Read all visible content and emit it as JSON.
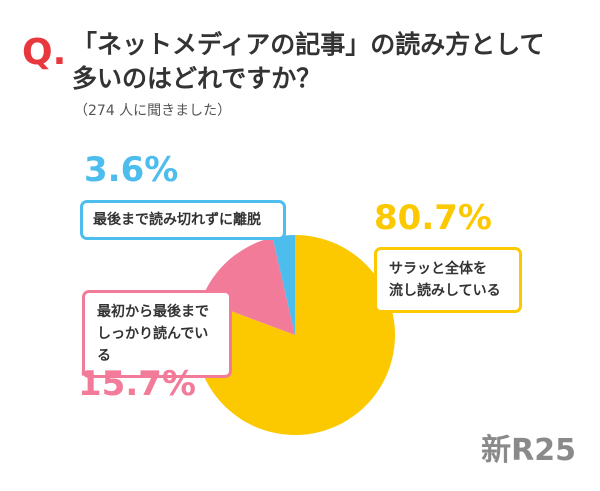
{
  "question_mark": "Q.",
  "title_line1": "「ネットメディアの記事」の読み方として",
  "title_line2": "多いのはどれですか？",
  "subtitle": "（274 人に聞きました）",
  "brand": "新R25",
  "colors": {
    "accent": "#e8383d",
    "yellow": "#fcc800",
    "pink": "#f27b9a",
    "blue": "#4cbdec"
  },
  "chart_data": {
    "type": "pie",
    "title": "「ネットメディアの記事」の読み方として多いのはどれですか？",
    "start_angle_deg": 0,
    "direction": "clockwise",
    "slices": [
      {
        "label_line1": "サラッと全体を",
        "label_line2": "流し読みしている",
        "value": 80.7,
        "value_label": "80.7%",
        "color": "#fcc800"
      },
      {
        "label_line1": "最初から最後まで",
        "label_line2": "しっかり読んでいる",
        "value": 15.7,
        "value_label": "15.7%",
        "color": "#f27b9a"
      },
      {
        "label_line1": "最後まで読み切れずに離脱",
        "label_line2": "",
        "value": 3.6,
        "value_label": "3.6%",
        "color": "#4cbdec"
      }
    ]
  }
}
